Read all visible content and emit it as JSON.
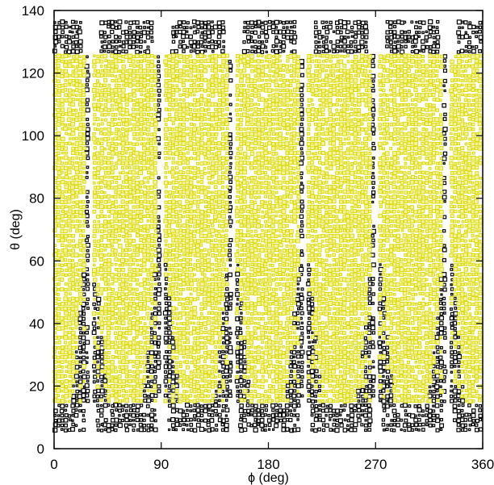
{
  "chart_data": {
    "type": "scatter",
    "title": "",
    "xlabel": "ϕ (deg)",
    "ylabel": "θ (deg)",
    "xlim": [
      0,
      360
    ],
    "ylim": [
      0,
      140
    ],
    "xticks": [
      "0",
      "90",
      "180",
      "270",
      "360"
    ],
    "yticks": [
      "0",
      "20",
      "40",
      "60",
      "80",
      "100",
      "120",
      "140"
    ],
    "grid": false,
    "legend": "none",
    "marker": "open-square",
    "colors": {
      "dark": "#000000",
      "yellow": "#d9d900",
      "yellow_fill": "#f4f2a0",
      "background": "#ffffff"
    },
    "notes": {
      "dark_band": {
        "theta_range": [
          6,
          137
        ],
        "phi_period": 60,
        "yellow_theta_range": [
          15,
          126
        ]
      }
    }
  }
}
